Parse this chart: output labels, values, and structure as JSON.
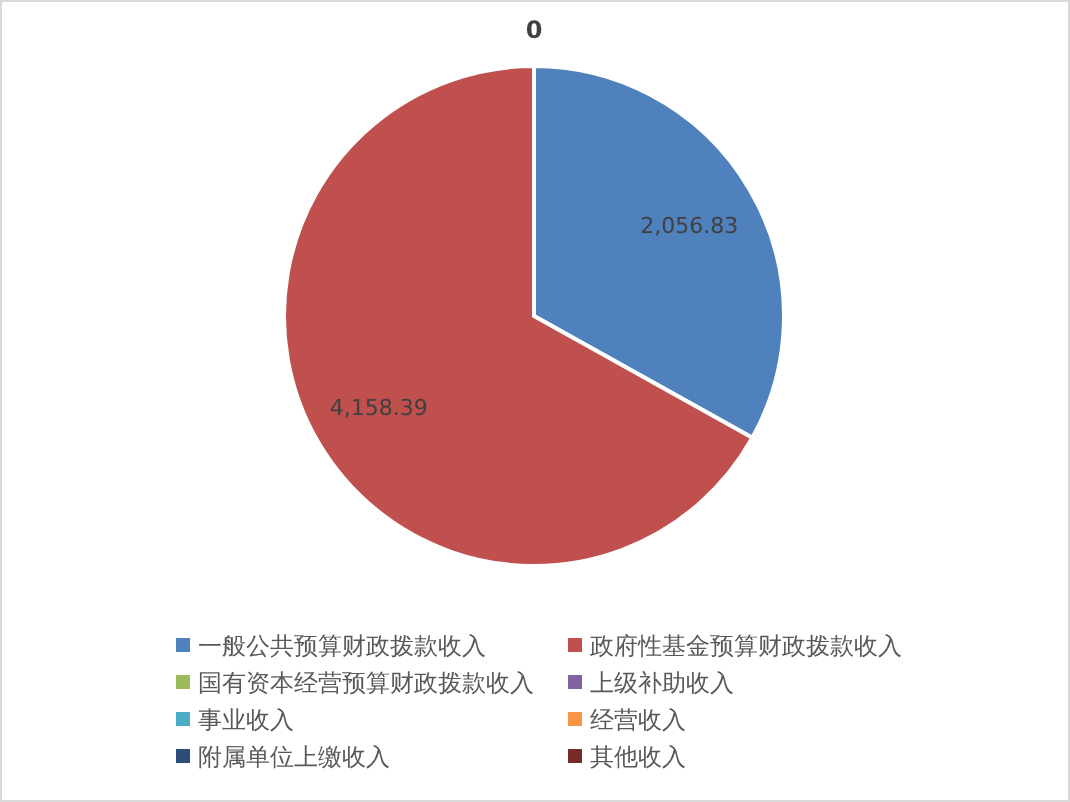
{
  "chart_data": {
    "type": "pie",
    "categories": [
      "一般公共预算财政拨款收入",
      "政府性基金预算财政拨款收入",
      "国有资本经营预算财政拨款收入",
      "上级补助收入",
      "事业收入",
      "经营收入",
      "附属单位上缴收入",
      "其他收入"
    ],
    "values": [
      2056.83,
      4158.39,
      0,
      0,
      0,
      0,
      0,
      0
    ],
    "colors": [
      "#4f81bd",
      "#c0504d",
      "#9bbb59",
      "#8064a2",
      "#4bacc6",
      "#f79646",
      "#2c4d75",
      "#772c2a"
    ],
    "value_labels": [
      "2,056.83",
      "4,158.39",
      "0",
      null,
      null,
      null,
      null,
      null
    ],
    "legend": "bottom"
  }
}
